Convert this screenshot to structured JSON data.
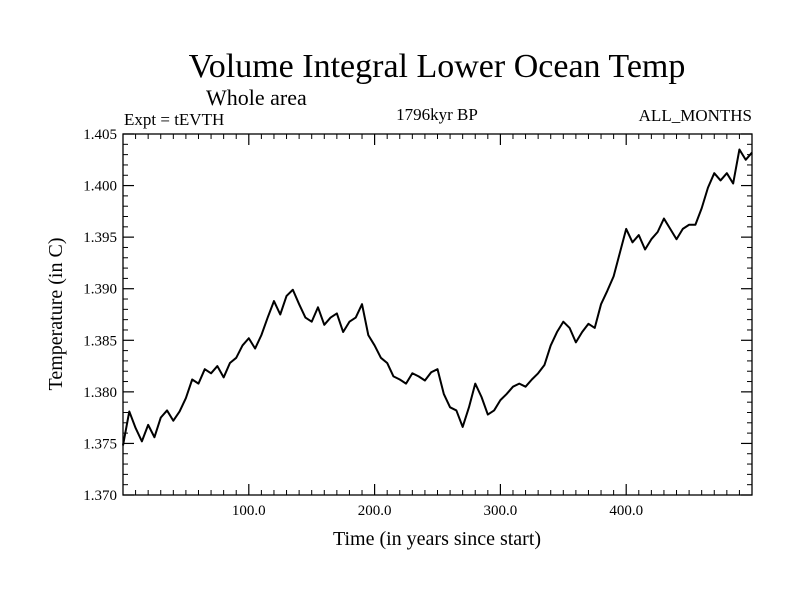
{
  "chart_data": {
    "type": "line",
    "title": "Volume Integral Lower Ocean Temp",
    "subtitle": "Whole area",
    "left_label": "Expt = tEVTH",
    "center_label": "1796kyr BP",
    "right_label": "ALL_MONTHS",
    "xlabel": "Time (in years since start)",
    "ylabel": "Temperature (in C)",
    "xlim": [
      0,
      500
    ],
    "ylim": [
      1.37,
      1.405
    ],
    "x_ticks": [
      100,
      200,
      300,
      400
    ],
    "x_tick_labels": [
      "100.0",
      "200.0",
      "300.0",
      "400.0"
    ],
    "y_ticks": [
      1.37,
      1.375,
      1.38,
      1.385,
      1.39,
      1.395,
      1.4,
      1.405
    ],
    "y_tick_labels": [
      "1.370",
      "1.375",
      "1.380",
      "1.385",
      "1.390",
      "1.395",
      "1.400",
      "1.405"
    ],
    "series": [
      {
        "name": "Volume Integral Lower Ocean Temp",
        "x": [
          0,
          5,
          10,
          15,
          20,
          25,
          30,
          35,
          40,
          45,
          50,
          55,
          60,
          65,
          70,
          75,
          80,
          85,
          90,
          95,
          100,
          105,
          110,
          115,
          120,
          125,
          130,
          135,
          140,
          145,
          150,
          155,
          160,
          165,
          170,
          175,
          180,
          185,
          190,
          195,
          200,
          205,
          210,
          215,
          220,
          225,
          230,
          235,
          240,
          245,
          250,
          255,
          260,
          265,
          270,
          275,
          280,
          285,
          290,
          295,
          300,
          305,
          310,
          315,
          320,
          325,
          330,
          335,
          340,
          345,
          350,
          355,
          360,
          365,
          370,
          375,
          380,
          385,
          390,
          395,
          400,
          405,
          410,
          415,
          420,
          425,
          430,
          435,
          440,
          445,
          450,
          455,
          460,
          465,
          470,
          475,
          480,
          485,
          490,
          495,
          500
        ],
        "y": [
          1.3748,
          1.3781,
          1.3765,
          1.3752,
          1.3768,
          1.3756,
          1.3775,
          1.3782,
          1.3772,
          1.3781,
          1.3794,
          1.3812,
          1.3808,
          1.3822,
          1.3818,
          1.3825,
          1.3814,
          1.3828,
          1.3833,
          1.3845,
          1.3852,
          1.3842,
          1.3855,
          1.3872,
          1.3888,
          1.3875,
          1.3893,
          1.3899,
          1.3885,
          1.3872,
          1.3868,
          1.3882,
          1.3865,
          1.3872,
          1.3876,
          1.3858,
          1.3868,
          1.3872,
          1.3885,
          1.3855,
          1.3845,
          1.3833,
          1.3828,
          1.3815,
          1.3812,
          1.3808,
          1.3818,
          1.3815,
          1.3811,
          1.3819,
          1.3822,
          1.3798,
          1.3785,
          1.3782,
          1.3766,
          1.3785,
          1.3808,
          1.3795,
          1.3778,
          1.3782,
          1.3792,
          1.3798,
          1.3805,
          1.3808,
          1.3805,
          1.3812,
          1.3818,
          1.3826,
          1.3845,
          1.3858,
          1.3868,
          1.3862,
          1.3848,
          1.3858,
          1.3866,
          1.3862,
          1.3885,
          1.3898,
          1.3912,
          1.3935,
          1.3958,
          1.3945,
          1.3952,
          1.3938,
          1.3948,
          1.3955,
          1.3968,
          1.3958,
          1.3948,
          1.3958,
          1.3962,
          1.3962,
          1.3978,
          1.3998,
          1.4012,
          1.4005,
          1.4012,
          1.4002,
          1.4035,
          1.4025,
          1.4032
        ]
      }
    ]
  }
}
